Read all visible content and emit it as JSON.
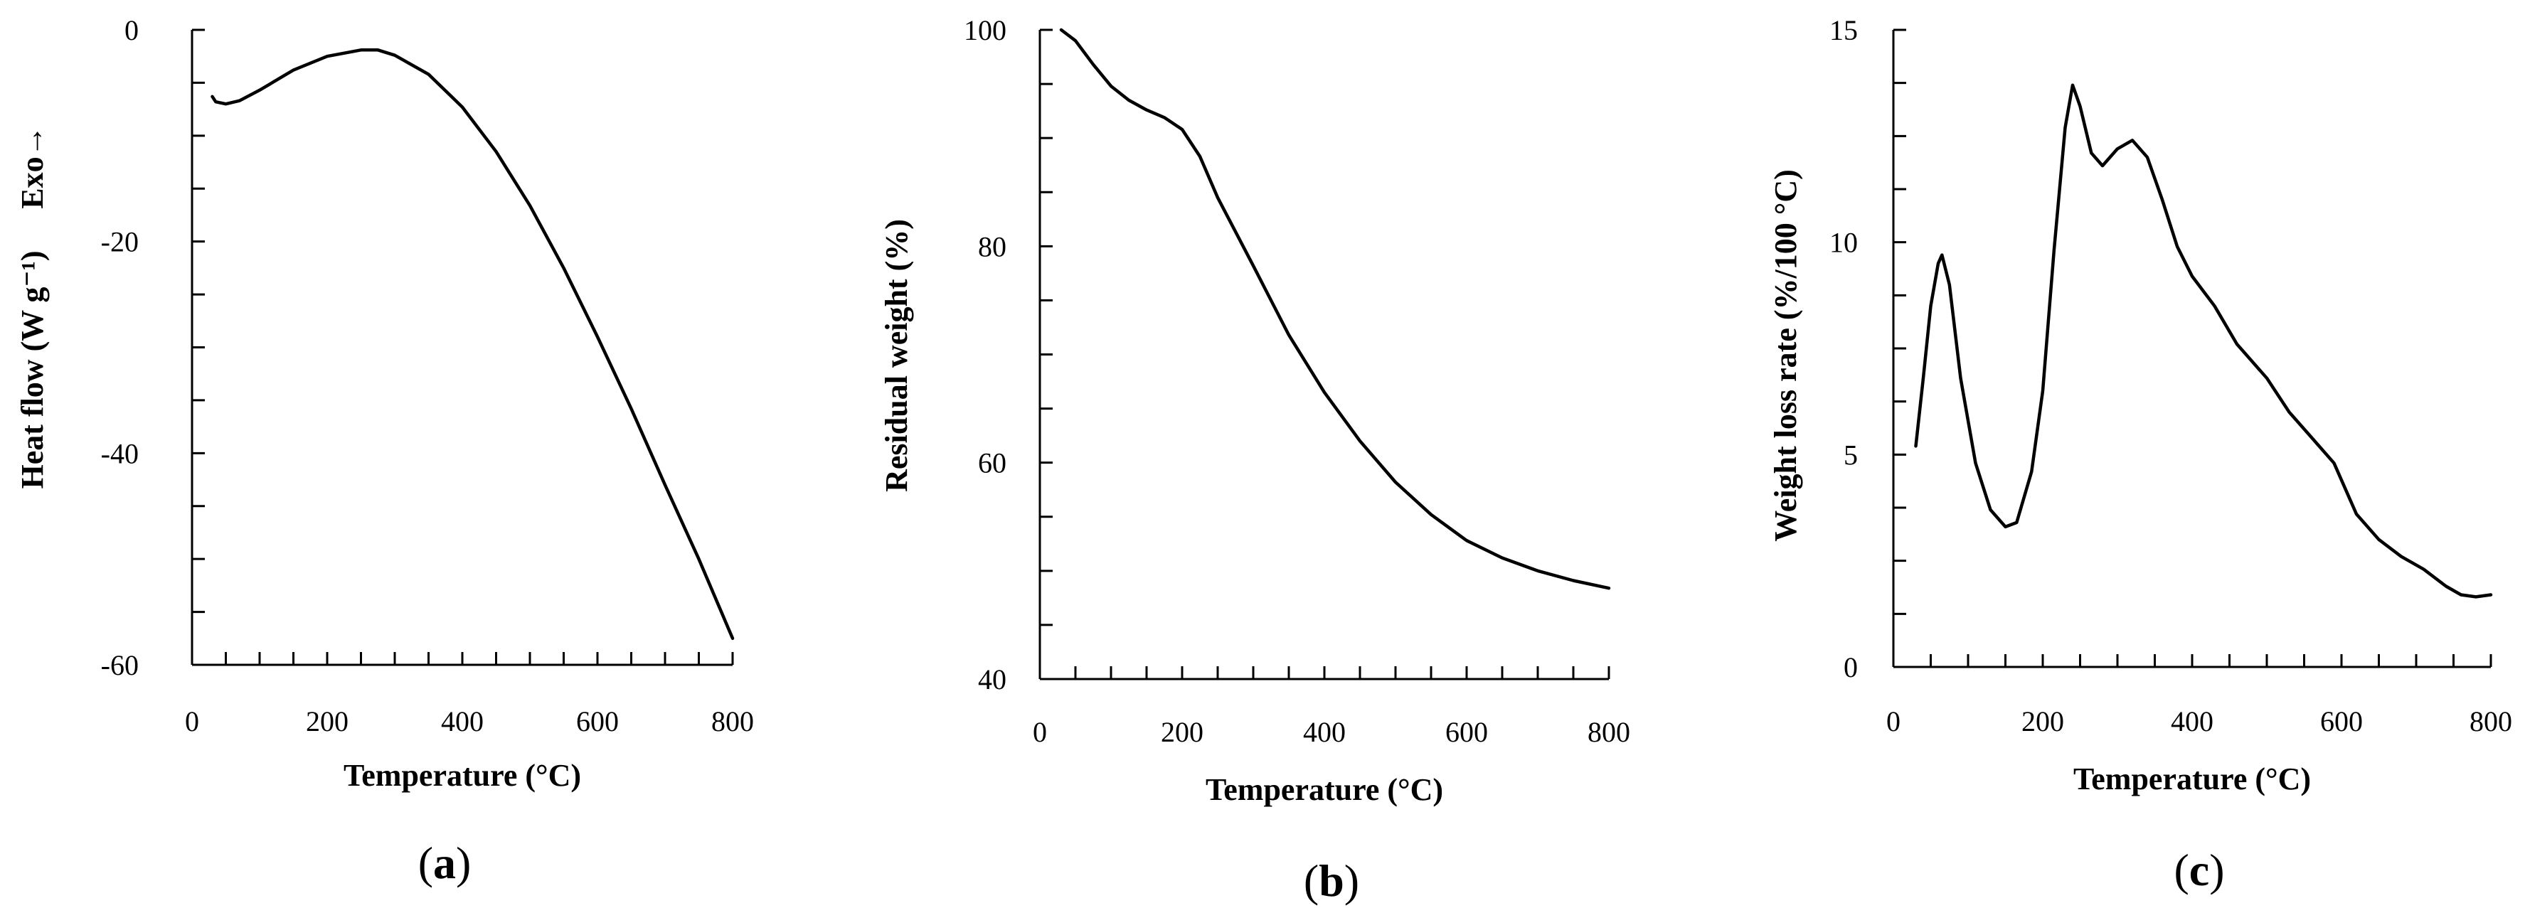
{
  "chart_data": [
    {
      "type": "line",
      "panel_label": "a",
      "xlabel": "Temperature (°C)",
      "ylabel": "Heat flow (W g⁻¹)",
      "annotation": "Exo→",
      "xlim": [
        0,
        800
      ],
      "ylim": [
        -60,
        0
      ],
      "xticks": [
        0,
        200,
        400,
        600,
        800
      ],
      "yticks": [
        -60,
        -40,
        -20,
        0
      ],
      "x_minor_step": 50,
      "y_minor_step": 5,
      "series": [
        {
          "name": "Heat flow",
          "points": [
            [
              30,
              -6.3
            ],
            [
              35,
              -6.8
            ],
            [
              50,
              -7.0
            ],
            [
              70,
              -6.7
            ],
            [
              100,
              -5.7
            ],
            [
              150,
              -3.8
            ],
            [
              200,
              -2.5
            ],
            [
              250,
              -1.9
            ],
            [
              275,
              -1.9
            ],
            [
              300,
              -2.4
            ],
            [
              350,
              -4.2
            ],
            [
              400,
              -7.3
            ],
            [
              450,
              -11.5
            ],
            [
              500,
              -16.6
            ],
            [
              550,
              -22.5
            ],
            [
              600,
              -29.0
            ],
            [
              650,
              -35.8
            ],
            [
              700,
              -43.0
            ],
            [
              750,
              -50.0
            ],
            [
              790,
              -56.0
            ],
            [
              800,
              -57.5
            ]
          ]
        }
      ]
    },
    {
      "type": "line",
      "panel_label": "b",
      "xlabel": "Temperature (°C)",
      "ylabel": "Residual weight (%)",
      "xlim": [
        0,
        800
      ],
      "ylim": [
        40,
        100
      ],
      "xticks": [
        0,
        200,
        400,
        600,
        800
      ],
      "yticks": [
        40,
        60,
        80,
        100
      ],
      "x_minor_step": 50,
      "y_minor_step": 5,
      "series": [
        {
          "name": "Residual weight",
          "points": [
            [
              30,
              100
            ],
            [
              50,
              99.0
            ],
            [
              75,
              96.8
            ],
            [
              100,
              94.8
            ],
            [
              125,
              93.5
            ],
            [
              150,
              92.6
            ],
            [
              175,
              91.9
            ],
            [
              200,
              90.8
            ],
            [
              225,
              88.3
            ],
            [
              250,
              84.5
            ],
            [
              300,
              78.2
            ],
            [
              350,
              71.8
            ],
            [
              400,
              66.5
            ],
            [
              450,
              62.0
            ],
            [
              500,
              58.2
            ],
            [
              550,
              55.2
            ],
            [
              600,
              52.8
            ],
            [
              650,
              51.2
            ],
            [
              700,
              50.0
            ],
            [
              750,
              49.1
            ],
            [
              800,
              48.4
            ]
          ]
        }
      ]
    },
    {
      "type": "line",
      "panel_label": "c",
      "xlabel": "Temperature (°C)",
      "ylabel": "Weight loss rate (%/100 °C)",
      "xlim": [
        0,
        800
      ],
      "ylim": [
        0,
        15
      ],
      "xticks": [
        0,
        200,
        400,
        600,
        800
      ],
      "yticks": [
        0,
        5,
        10,
        15
      ],
      "x_minor_step": 50,
      "y_minor_step": 1.25,
      "series": [
        {
          "name": "Weight loss rate",
          "points": [
            [
              30,
              5.2
            ],
            [
              40,
              6.8
            ],
            [
              50,
              8.5
            ],
            [
              60,
              9.5
            ],
            [
              65,
              9.7
            ],
            [
              75,
              9.0
            ],
            [
              90,
              6.8
            ],
            [
              110,
              4.8
            ],
            [
              130,
              3.7
            ],
            [
              150,
              3.3
            ],
            [
              165,
              3.4
            ],
            [
              185,
              4.6
            ],
            [
              200,
              6.5
            ],
            [
              215,
              9.8
            ],
            [
              230,
              12.7
            ],
            [
              240,
              13.7
            ],
            [
              250,
              13.2
            ],
            [
              265,
              12.1
            ],
            [
              280,
              11.8
            ],
            [
              300,
              12.2
            ],
            [
              320,
              12.4
            ],
            [
              340,
              12.0
            ],
            [
              360,
              11.0
            ],
            [
              380,
              9.9
            ],
            [
              400,
              9.2
            ],
            [
              430,
              8.5
            ],
            [
              460,
              7.6
            ],
            [
              500,
              6.8
            ],
            [
              530,
              6.0
            ],
            [
              560,
              5.4
            ],
            [
              590,
              4.8
            ],
            [
              620,
              3.6
            ],
            [
              650,
              3.0
            ],
            [
              680,
              2.6
            ],
            [
              710,
              2.3
            ],
            [
              740,
              1.9
            ],
            [
              760,
              1.7
            ],
            [
              780,
              1.65
            ],
            [
              800,
              1.7
            ]
          ]
        }
      ]
    }
  ]
}
